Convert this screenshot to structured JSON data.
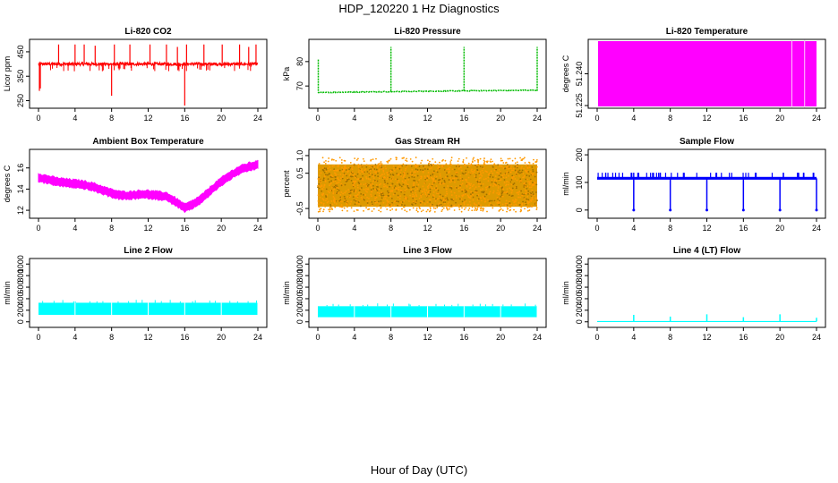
{
  "figure": {
    "title": "HDP_120220  1 Hz Diagnostics",
    "xlabel": "Hour of Day (UTC)"
  },
  "chart_data": [
    {
      "type": "line",
      "title": "Li-820 CO2",
      "ylabel": "Licor ppm",
      "color": "#ff0000",
      "xlim": [
        0,
        24
      ],
      "ylim": [
        230,
        490
      ],
      "xticks": [
        0,
        4,
        8,
        12,
        16,
        20,
        24
      ],
      "yticks": [
        250,
        350,
        450
      ],
      "series": [
        {
          "baseline": 400,
          "noise": 6,
          "spikes": [
            [
              0.1,
              290
            ],
            [
              0.2,
              300
            ],
            [
              2.2,
              480
            ],
            [
              4.0,
              480
            ],
            [
              5.0,
              480
            ],
            [
              6.2,
              475
            ],
            [
              8.0,
              270
            ],
            [
              8.3,
              480
            ],
            [
              10.0,
              480
            ],
            [
              12.2,
              480
            ],
            [
              14.0,
              480
            ],
            [
              15.2,
              470
            ],
            [
              16.0,
              230
            ],
            [
              16.2,
              480
            ],
            [
              18.1,
              480
            ],
            [
              20.1,
              480
            ],
            [
              22.0,
              480
            ],
            [
              23.0,
              470
            ],
            [
              23.8,
              480
            ]
          ]
        }
      ]
    },
    {
      "type": "line",
      "title": "Li-820 Pressure",
      "ylabel": "kPa",
      "color": "#00bb00",
      "xlim": [
        0,
        24
      ],
      "ylim": [
        62,
        88
      ],
      "xticks": [
        0,
        4,
        8,
        12,
        16,
        20,
        24
      ],
      "yticks": [
        70,
        80
      ],
      "series": [
        {
          "segments": [
            [
              0,
              8,
              67.3,
              67.7
            ],
            [
              8,
              16,
              67.7,
              68.0
            ],
            [
              16,
              24,
              68.0,
              68.3
            ]
          ],
          "spikes": [
            [
              0.05,
              81
            ],
            [
              8.0,
              86
            ],
            [
              16.0,
              86
            ],
            [
              24.0,
              86
            ]
          ]
        }
      ]
    },
    {
      "type": "area",
      "title": "Li-820 Temperature",
      "ylabel": "degrees C",
      "color": "#ff00ff",
      "xlim": [
        0,
        24
      ],
      "ylim": [
        51.225,
        51.255
      ],
      "xticks": [
        0,
        4,
        8,
        12,
        16,
        20,
        24
      ],
      "yticks": [
        "51.225",
        "51.240"
      ],
      "series": [
        {
          "fill_from": 0,
          "fill_to": 24,
          "gaps": [
            21.3,
            22.7
          ]
        }
      ]
    },
    {
      "type": "line",
      "title": "Ambient Box Temperature",
      "ylabel": "degrees C",
      "color": "#ff00ff",
      "xlim": [
        0,
        24
      ],
      "ylim": [
        11.5,
        17.5
      ],
      "xticks": [
        0,
        4,
        8,
        12,
        16,
        20,
        24
      ],
      "yticks": [
        12,
        14,
        16
      ],
      "series": [
        {
          "x": [
            0,
            1,
            2,
            3,
            4,
            5,
            6,
            7,
            8,
            9,
            10,
            11,
            12,
            13,
            14,
            15,
            16,
            17,
            18,
            19,
            20,
            21,
            22,
            23,
            24
          ],
          "y": [
            15.1,
            14.9,
            14.7,
            14.6,
            14.5,
            14.4,
            14.2,
            13.9,
            13.6,
            13.4,
            13.4,
            13.5,
            13.5,
            13.4,
            13.3,
            12.8,
            12.2,
            12.6,
            13.2,
            14.0,
            14.7,
            15.3,
            15.8,
            16.1,
            16.3
          ],
          "band": 0.9
        }
      ]
    },
    {
      "type": "scatter",
      "title": "Gas Stream RH",
      "ylabel": "percent",
      "color": "#ff9900",
      "xlim": [
        0,
        24
      ],
      "ylim": [
        -0.7,
        1.1
      ],
      "xticks": [
        0,
        4,
        8,
        12,
        16,
        20,
        24
      ],
      "yticks": [
        "-0.5",
        "0.5",
        "1.0"
      ],
      "series": [
        {
          "low": -0.45,
          "high": 0.75,
          "sparse_low": -0.6,
          "sparse_high": 0.95
        }
      ]
    },
    {
      "type": "line",
      "title": "Sample Flow",
      "ylabel": "ml/min",
      "color": "#0000ff",
      "xlim": [
        0,
        24
      ],
      "ylim": [
        -20,
        210
      ],
      "xticks": [
        0,
        4,
        8,
        12,
        16,
        20,
        24
      ],
      "yticks": [
        0,
        100,
        200
      ],
      "series": [
        {
          "baseline": 115,
          "band": 10,
          "top": 135,
          "dips": [
            4,
            8,
            12,
            16,
            20,
            24
          ]
        }
      ]
    },
    {
      "type": "line",
      "title": "Line 2 Flow",
      "ylabel": "ml/min",
      "color": "#00ffff",
      "xlim": [
        0,
        24
      ],
      "ylim": [
        -50,
        1050
      ],
      "xticks": [
        0,
        4,
        8,
        12,
        16,
        20,
        24
      ],
      "yticks": [
        0,
        200,
        400,
        600,
        800,
        1000
      ],
      "series": [
        {
          "low": 120,
          "high": 330,
          "breaks": [
            4,
            8,
            12,
            16,
            20,
            24
          ]
        }
      ]
    },
    {
      "type": "line",
      "title": "Line 3 Flow",
      "ylabel": "ml/min",
      "color": "#00ffff",
      "xlim": [
        0,
        24
      ],
      "ylim": [
        -50,
        1050
      ],
      "xticks": [
        0,
        4,
        8,
        12,
        16,
        20,
        24
      ],
      "yticks": [
        0,
        200,
        400,
        600,
        800,
        1000
      ],
      "series": [
        {
          "low": 80,
          "high": 270,
          "breaks": [
            4,
            8,
            12,
            16,
            20,
            24
          ]
        }
      ]
    },
    {
      "type": "line",
      "title": "Line 4 (LT) Flow",
      "ylabel": "ml/min",
      "color": "#00ffff",
      "xlim": [
        0,
        24
      ],
      "ylim": [
        -50,
        1050
      ],
      "xticks": [
        0,
        4,
        8,
        12,
        16,
        20,
        24
      ],
      "yticks": [
        0,
        200,
        400,
        600,
        800,
        1000
      ],
      "series": [
        {
          "baseline": 5,
          "spikes": [
            [
              4,
              120
            ],
            [
              8,
              90
            ],
            [
              12,
              130
            ],
            [
              16,
              80
            ],
            [
              20,
              130
            ],
            [
              24,
              70
            ]
          ]
        }
      ]
    }
  ]
}
